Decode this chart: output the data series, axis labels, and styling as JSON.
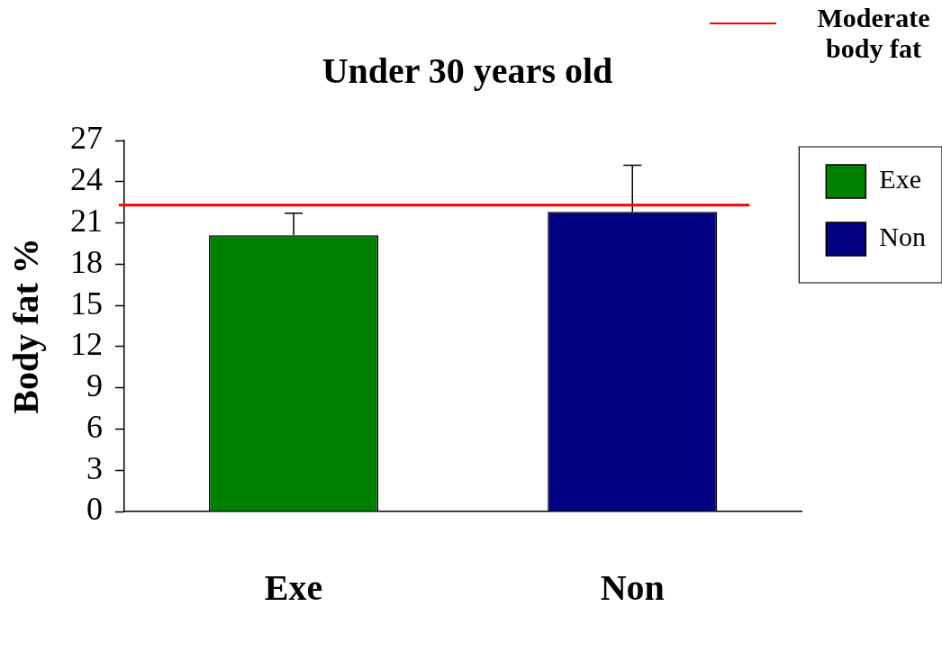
{
  "chart_data": {
    "type": "bar",
    "title": "Under 30 years old",
    "ylabel": "Body fat %",
    "categories": [
      "Exe",
      "Non"
    ],
    "series": [
      {
        "name": "Exe",
        "color": "#008000",
        "values": [
          20.1,
          null
        ],
        "errors": [
          [
            20.1,
            21.7
          ],
          null
        ]
      },
      {
        "name": "Non",
        "color": "#000080",
        "values": [
          null,
          21.8
        ],
        "errors": [
          null,
          [
            21.8,
            25.2
          ]
        ]
      }
    ],
    "ylim": [
      0,
      27
    ],
    "yticks": [
      0,
      3,
      6,
      9,
      12,
      15,
      18,
      21,
      24,
      27
    ],
    "ref_lines": [
      {
        "axis": "y",
        "value": 22.3,
        "label": "Moderate body fat",
        "color": "#ff0000"
      }
    ],
    "grid": false,
    "legend": "top right"
  }
}
